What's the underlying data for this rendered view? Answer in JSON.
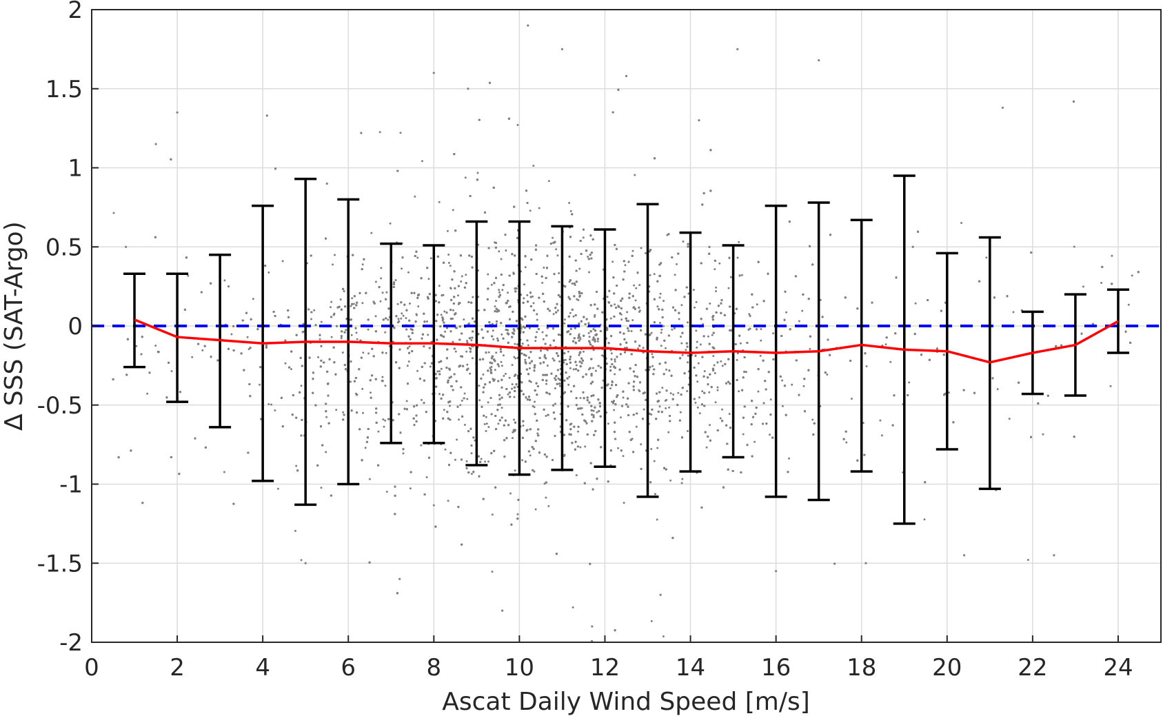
{
  "chart_data": {
    "type": "scatter",
    "title": "",
    "xlabel": "Ascat Daily Wind Speed [m/s]",
    "ylabel": "∆ SSS (SAT-Argo)",
    "xlim": [
      0,
      25
    ],
    "ylim": [
      -2,
      2
    ],
    "xticks": [
      0,
      2,
      4,
      6,
      8,
      10,
      12,
      14,
      16,
      18,
      20,
      22,
      24
    ],
    "yticks": [
      -2,
      -1.5,
      -1,
      -0.5,
      0,
      0.5,
      1,
      1.5,
      2
    ],
    "xtick_labels": [
      "0",
      "2",
      "4",
      "6",
      "8",
      "10",
      "12",
      "14",
      "16",
      "18",
      "20",
      "22",
      "24"
    ],
    "ytick_labels": [
      "-2",
      "-1.5",
      "-1",
      "-0.5",
      "0",
      "0.5",
      "1",
      "1.5",
      "2"
    ],
    "grid": true,
    "colors": {
      "scatter": "#808080",
      "mean_line": "#ff0000",
      "zero_line": "#0000ff",
      "error_bars": "#000000",
      "grid": "#dcdcdc",
      "axes": "#262626"
    },
    "reference_line": {
      "y": 0,
      "style": "dashed"
    },
    "series": [
      {
        "type": "line",
        "x": [
          1,
          2,
          3,
          4,
          5,
          6,
          7,
          8,
          9,
          10,
          11,
          12,
          13,
          14,
          15,
          16,
          17,
          18,
          19,
          20,
          21,
          22,
          23,
          24
        ],
        "values": [
          0.04,
          -0.07,
          -0.09,
          -0.11,
          -0.1,
          -0.1,
          -0.11,
          -0.11,
          -0.12,
          -0.14,
          -0.14,
          -0.14,
          -0.16,
          -0.17,
          -0.16,
          -0.17,
          -0.16,
          -0.12,
          -0.15,
          -0.16,
          -0.23,
          -0.17,
          -0.12,
          0.03
        ]
      },
      {
        "type": "errorbar",
        "x": [
          1,
          2,
          3,
          4,
          5,
          6,
          7,
          8,
          9,
          10,
          11,
          12,
          13,
          14,
          15,
          16,
          17,
          18,
          19,
          20,
          21,
          22,
          23,
          24
        ],
        "upper": [
          0.33,
          0.33,
          0.45,
          0.76,
          0.93,
          0.8,
          0.52,
          0.51,
          0.66,
          0.66,
          0.63,
          0.61,
          0.77,
          0.59,
          0.51,
          0.76,
          0.78,
          0.67,
          0.95,
          0.46,
          0.56,
          0.09,
          0.2,
          0.23
        ],
        "lower": [
          -0.26,
          -0.48,
          -0.64,
          -0.98,
          -1.13,
          -1.0,
          -0.74,
          -0.74,
          -0.88,
          -0.94,
          -0.91,
          -0.89,
          -1.08,
          -0.92,
          -0.83,
          -1.08,
          -1.1,
          -0.92,
          -1.25,
          -0.78,
          -1.03,
          -0.43,
          -0.44,
          -0.17
        ]
      },
      {
        "type": "scatter",
        "description_of_density": "dense cloud of grey points spanning x 0.5–24.5 and y -2 to 2, densest between x 6–14 near y -0.2",
        "x": [
          0.8,
          1.5,
          2.0,
          3.2,
          4.1,
          5.0,
          5.5,
          6.3,
          7.2,
          8.0,
          8.8,
          9.6,
          10.2,
          11.0,
          11.7,
          12.5,
          13.3,
          14.2,
          15.1,
          16.0,
          17.0,
          18.1,
          19.2,
          20.4,
          21.3,
          22.5
        ],
        "values": [
          0.5,
          1.15,
          1.35,
          0.25,
          1.33,
          -1.5,
          0.9,
          1.22,
          -1.6,
          1.6,
          1.5,
          -1.8,
          1.9,
          1.75,
          -1.9,
          1.58,
          -1.7,
          1.3,
          1.75,
          -1.55,
          1.68,
          -1.5,
          0.5,
          -1.45,
          1.38,
          -1.45
        ]
      }
    ]
  }
}
